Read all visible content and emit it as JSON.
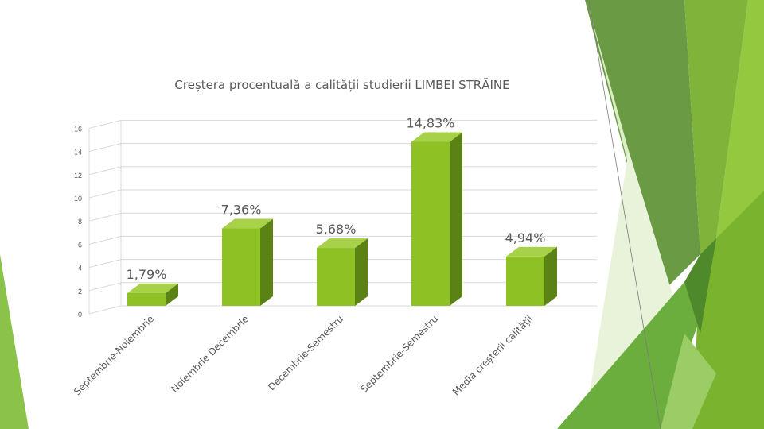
{
  "chart_data": {
    "type": "bar",
    "title": "Creștera procentuală a calității studierii LIMBEI  STRĂINE",
    "categories": [
      "Septembrie-Noiembrie",
      "Noiembrie Decembrie",
      "Decembrie-Semestru",
      "Septembrie-Semestru",
      "Media creșterii calității"
    ],
    "values": [
      1.79,
      7.36,
      5.68,
      14.83,
      4.94
    ],
    "data_labels": [
      "1,79%",
      "7,36%",
      "5,68%",
      "14,83%",
      "4,94%"
    ],
    "yticks": [
      "0",
      "2",
      "4",
      "6",
      "8",
      "10",
      "12",
      "14",
      "16"
    ],
    "ylim": [
      0,
      16
    ],
    "grid": true,
    "style": "3d-column",
    "colors": {
      "bar_front": "#8dc124",
      "bar_side": "#5a8214",
      "bar_top": "#a8d14a",
      "grid": "#d9d9d9",
      "text": "#595959"
    }
  },
  "theme": {
    "greens": [
      "#8bc34a",
      "#6a9a3a",
      "#7ab32e",
      "#5e8f2e",
      "#c5e1a5",
      "#dcedc8",
      "#4e8a2c",
      "#9ccc65"
    ]
  }
}
